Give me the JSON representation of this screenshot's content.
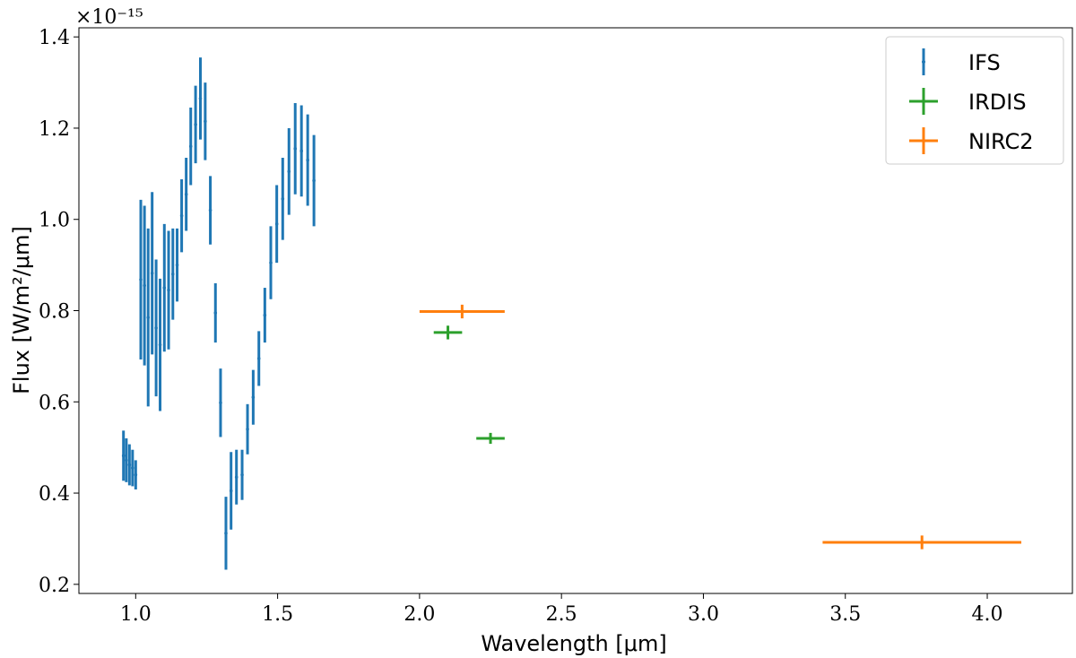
{
  "chart_data": {
    "type": "scatter",
    "title": "",
    "xlabel": "Wavelength [μm]",
    "ylabel": "Flux [W/m²/μm]",
    "y_scale_factor": "×10⁻¹⁵",
    "xlim": [
      0.8,
      4.3
    ],
    "ylim": [
      0.18,
      1.42
    ],
    "x_ticks": [
      1.0,
      1.5,
      2.0,
      2.5,
      3.0,
      3.5,
      4.0
    ],
    "x_tick_labels": [
      "1.0",
      "1.5",
      "2.0",
      "2.5",
      "3.0",
      "3.5",
      "4.0"
    ],
    "y_ticks": [
      0.2,
      0.4,
      0.6,
      0.8,
      1.0,
      1.2,
      1.4
    ],
    "y_tick_labels": [
      "0.2",
      "0.4",
      "0.6",
      "0.8",
      "1.0",
      "1.2",
      "1.4"
    ],
    "grid": false,
    "legend_position": "top-right",
    "series": [
      {
        "name": "IFS",
        "color": "#1f77b4",
        "points": [
          {
            "x": 0.957,
            "y": 0.482,
            "yerr": 0.055
          },
          {
            "x": 0.967,
            "y": 0.472,
            "yerr": 0.048
          },
          {
            "x": 0.978,
            "y": 0.462,
            "yerr": 0.045
          },
          {
            "x": 0.989,
            "y": 0.455,
            "yerr": 0.04
          },
          {
            "x": 1.0,
            "y": 0.44,
            "yerr": 0.032
          },
          {
            "x": 1.018,
            "y": 0.868,
            "yerr": 0.175
          },
          {
            "x": 1.031,
            "y": 0.855,
            "yerr": 0.175
          },
          {
            "x": 1.044,
            "y": 0.785,
            "yerr": 0.195
          },
          {
            "x": 1.058,
            "y": 0.882,
            "yerr": 0.178
          },
          {
            "x": 1.072,
            "y": 0.762,
            "yerr": 0.15
          },
          {
            "x": 1.086,
            "y": 0.725,
            "yerr": 0.145
          },
          {
            "x": 1.101,
            "y": 0.85,
            "yerr": 0.14
          },
          {
            "x": 1.116,
            "y": 0.845,
            "yerr": 0.13
          },
          {
            "x": 1.131,
            "y": 0.88,
            "yerr": 0.1
          },
          {
            "x": 1.146,
            "y": 0.9,
            "yerr": 0.08
          },
          {
            "x": 1.162,
            "y": 1.008,
            "yerr": 0.08
          },
          {
            "x": 1.178,
            "y": 1.055,
            "yerr": 0.08
          },
          {
            "x": 1.194,
            "y": 1.16,
            "yerr": 0.085
          },
          {
            "x": 1.211,
            "y": 1.208,
            "yerr": 0.085
          },
          {
            "x": 1.228,
            "y": 1.265,
            "yerr": 0.09
          },
          {
            "x": 1.245,
            "y": 1.215,
            "yerr": 0.085
          },
          {
            "x": 1.263,
            "y": 1.02,
            "yerr": 0.075
          },
          {
            "x": 1.281,
            "y": 0.795,
            "yerr": 0.065
          },
          {
            "x": 1.299,
            "y": 0.598,
            "yerr": 0.075
          },
          {
            "x": 1.318,
            "y": 0.312,
            "yerr": 0.08
          },
          {
            "x": 1.336,
            "y": 0.405,
            "yerr": 0.085
          },
          {
            "x": 1.355,
            "y": 0.435,
            "yerr": 0.06
          },
          {
            "x": 1.375,
            "y": 0.44,
            "yerr": 0.055
          },
          {
            "x": 1.394,
            "y": 0.54,
            "yerr": 0.055
          },
          {
            "x": 1.414,
            "y": 0.61,
            "yerr": 0.06
          },
          {
            "x": 1.434,
            "y": 0.695,
            "yerr": 0.06
          },
          {
            "x": 1.455,
            "y": 0.79,
            "yerr": 0.06
          },
          {
            "x": 1.476,
            "y": 0.905,
            "yerr": 0.08
          },
          {
            "x": 1.497,
            "y": 0.99,
            "yerr": 0.085
          },
          {
            "x": 1.518,
            "y": 1.045,
            "yerr": 0.09
          },
          {
            "x": 1.54,
            "y": 1.105,
            "yerr": 0.095
          },
          {
            "x": 1.562,
            "y": 1.155,
            "yerr": 0.1
          },
          {
            "x": 1.584,
            "y": 1.15,
            "yerr": 0.1
          },
          {
            "x": 1.606,
            "y": 1.13,
            "yerr": 0.1
          },
          {
            "x": 1.628,
            "y": 1.085,
            "yerr": 0.1
          }
        ]
      },
      {
        "name": "IRDIS",
        "color": "#2ca02c",
        "points": [
          {
            "x": 2.1,
            "y": 0.752,
            "xerr": 0.05,
            "yerr": 0.015
          },
          {
            "x": 2.25,
            "y": 0.52,
            "xerr": 0.05,
            "yerr": 0.012
          }
        ]
      },
      {
        "name": "NIRC2",
        "color": "#ff7f0e",
        "points": [
          {
            "x": 2.15,
            "y": 0.798,
            "xerr": 0.15,
            "yerr": 0.015
          },
          {
            "x": 3.77,
            "y": 0.292,
            "xerr": 0.35,
            "yerr": 0.015
          }
        ]
      }
    ]
  }
}
